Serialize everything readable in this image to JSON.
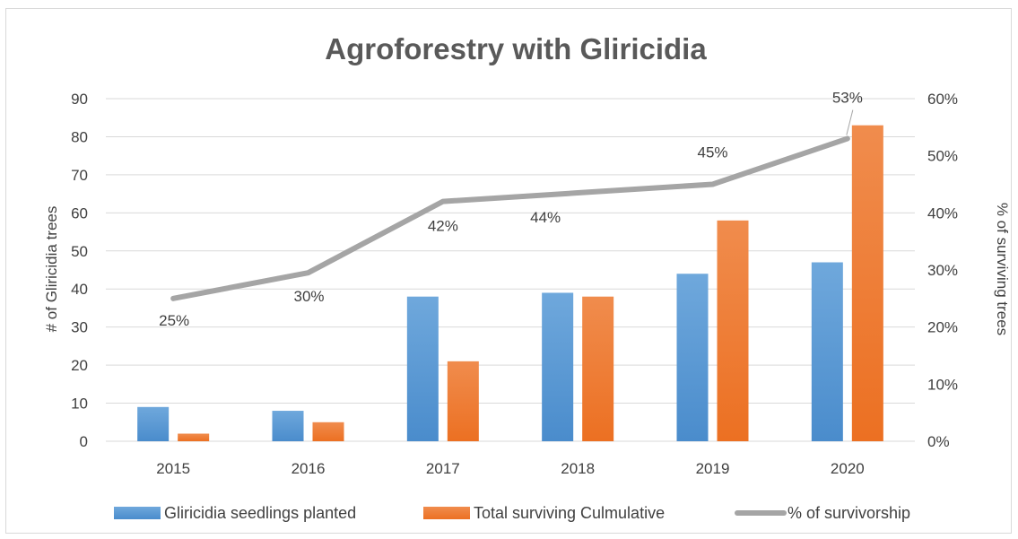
{
  "chart_data": {
    "type": "bar",
    "title": "Agroforestry with Gliricidia",
    "categories": [
      "2015",
      "2016",
      "2017",
      "2018",
      "2019",
      "2020"
    ],
    "series": [
      {
        "name": "Gliricidia seedlings planted",
        "kind": "bar",
        "axis": "left",
        "color": "#5b9bd5",
        "values": [
          9,
          8,
          38,
          39,
          44,
          47
        ]
      },
      {
        "name": "Total surviving Culmulative",
        "kind": "bar",
        "axis": "left",
        "color": "#ed7d31",
        "values": [
          2,
          5,
          21,
          38,
          58,
          83
        ]
      },
      {
        "name": "% of survivorship",
        "kind": "line",
        "axis": "right",
        "color": "#a5a5a5",
        "values": [
          25,
          29.5,
          42,
          43.5,
          45,
          53
        ],
        "labels": [
          "25%",
          "30%",
          "42%",
          "44%",
          "45%",
          "53%"
        ]
      }
    ],
    "ylabel": "# of Gliricidia trees",
    "y2label": "% of surviving trees",
    "ylim": [
      0,
      90
    ],
    "y2lim": [
      0,
      60
    ],
    "yticks": [
      "0",
      "10",
      "20",
      "30",
      "40",
      "50",
      "60",
      "70",
      "80",
      "90"
    ],
    "y2ticks": [
      "0%",
      "10%",
      "20%",
      "30%",
      "40%",
      "50%",
      "60%"
    ],
    "grid": true,
    "legend_position": "bottom"
  }
}
